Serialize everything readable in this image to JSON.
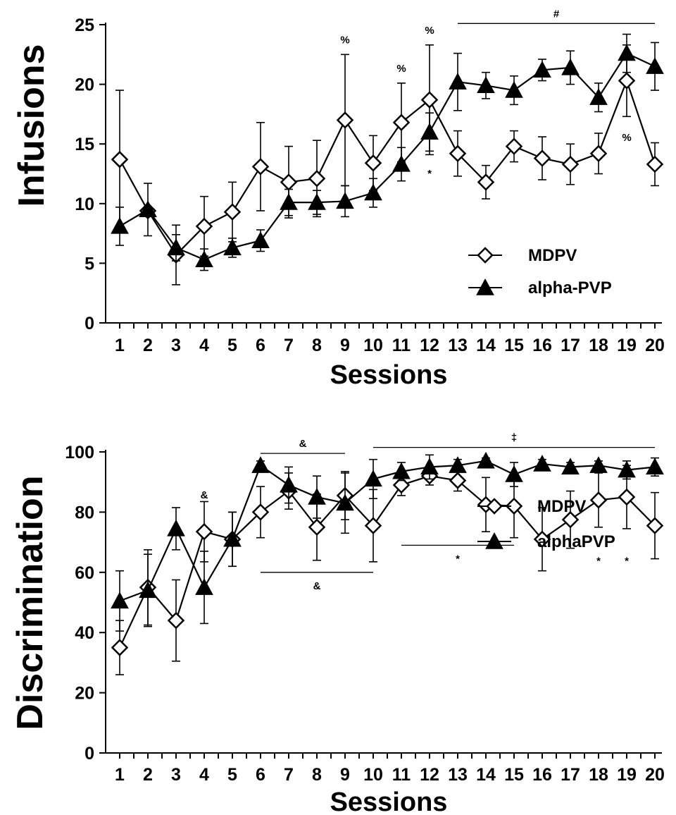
{
  "chart_data": [
    {
      "type": "line",
      "ylabel": "Infusions",
      "xlabel": "Sessions",
      "x": [
        1,
        2,
        3,
        4,
        5,
        6,
        7,
        8,
        9,
        10,
        11,
        12,
        13,
        14,
        15,
        16,
        17,
        18,
        19,
        20
      ],
      "ylim": [
        0,
        25
      ],
      "yticks": [
        0,
        5,
        10,
        15,
        20,
        25
      ],
      "grid": false,
      "legend_position": "bottom-right",
      "series": [
        {
          "name": "MDPV",
          "marker": "open-diamond",
          "color": "#000000",
          "values": [
            13.7,
            9.4,
            5.7,
            8.1,
            9.3,
            13.1,
            11.8,
            12.1,
            17.0,
            13.4,
            16.8,
            18.7,
            14.2,
            11.8,
            14.8,
            13.8,
            13.3,
            14.2,
            20.3,
            13.3
          ],
          "errors": [
            5.8,
            0.0,
            2.5,
            2.5,
            2.5,
            3.7,
            3.0,
            3.2,
            5.5,
            2.3,
            3.3,
            4.6,
            1.9,
            1.4,
            1.3,
            1.8,
            1.7,
            1.7,
            3.0,
            1.8
          ]
        },
        {
          "name": "alpha-PVP",
          "marker": "filled-triangle",
          "color": "#000000",
          "values": [
            8.1,
            9.5,
            6.3,
            5.3,
            6.3,
            6.9,
            10.1,
            10.1,
            10.2,
            10.9,
            13.3,
            16.0,
            20.2,
            19.9,
            19.5,
            21.2,
            21.4,
            18.9,
            22.6,
            21.5
          ],
          "errors": [
            1.6,
            2.2,
            1.1,
            0.9,
            0.8,
            0.9,
            1.1,
            1.0,
            1.3,
            1.2,
            1.4,
            1.6,
            2.4,
            1.1,
            1.2,
            0.9,
            1.4,
            1.2,
            1.6,
            2.0
          ]
        }
      ],
      "annotations": [
        {
          "text": "%",
          "x": 9,
          "y": 23.8
        },
        {
          "text": "%",
          "x": 11,
          "y": 21.4
        },
        {
          "text": "%",
          "x": 12,
          "y": 24.6
        },
        {
          "text": "*",
          "x": 12,
          "y": 12.6
        },
        {
          "text": "%",
          "x": 19,
          "y": 15.6
        },
        {
          "text": "#",
          "x_range": [
            13,
            20
          ],
          "y": 25.1
        }
      ]
    },
    {
      "type": "line",
      "ylabel": "Discrimination",
      "xlabel": "Sessions",
      "x": [
        1,
        2,
        3,
        4,
        5,
        6,
        7,
        8,
        9,
        10,
        11,
        12,
        13,
        14,
        15,
        16,
        17,
        18,
        19,
        20
      ],
      "ylim": [
        0,
        100
      ],
      "yticks": [
        0,
        20,
        40,
        60,
        80,
        100
      ],
      "grid": false,
      "legend_position": "bottom-right",
      "series": [
        {
          "name": "MDPV",
          "marker": "open-diamond",
          "color": "#000000",
          "values": [
            35.0,
            55.0,
            44.0,
            73.5,
            71.0,
            80.0,
            87.0,
            75.0,
            85.5,
            75.5,
            89.0,
            92.0,
            90.5,
            82.5,
            82.0,
            71.0,
            77.5,
            84.0,
            85.0,
            75.5
          ],
          "errors": [
            9.0,
            12.5,
            13.5,
            10.0,
            9.0,
            8.5,
            6.0,
            11.0,
            8.0,
            12.0,
            3.5,
            3.0,
            3.5,
            9.0,
            10.5,
            10.5,
            9.5,
            9.0,
            10.5,
            11.0
          ]
        },
        {
          "name": "alphaPVP",
          "marker": "filled-triangle",
          "color": "#000000",
          "values": [
            50.5,
            54.0,
            74.5,
            55.0,
            71.0,
            95.5,
            89.0,
            85.0,
            83.0,
            91.0,
            93.5,
            95.0,
            95.5,
            97.0,
            92.5,
            96.0,
            95.0,
            95.5,
            94.0,
            95.0
          ],
          "errors": [
            10.0,
            12.0,
            7.0,
            12.0,
            9.0,
            1.5,
            6.0,
            7.0,
            10.0,
            6.5,
            3.0,
            4.0,
            2.0,
            1.0,
            4.0,
            1.5,
            1.5,
            1.5,
            3.0,
            3.0
          ]
        }
      ],
      "annotations": [
        {
          "text": "&",
          "x": 4,
          "y": 86.0
        },
        {
          "text": "&",
          "x_range": [
            6,
            9
          ],
          "y": 99.5
        },
        {
          "text": "‡",
          "x_range": [
            10,
            20
          ],
          "y": 101.5
        },
        {
          "text": "&",
          "x_range": [
            6,
            10
          ],
          "y": 60.0
        },
        {
          "text": "*",
          "x_range": [
            11,
            15
          ],
          "y": 69.0
        },
        {
          "text": "*",
          "x": 18,
          "y": 64.0
        },
        {
          "text": "*",
          "x": 19,
          "y": 64.0
        }
      ]
    }
  ]
}
